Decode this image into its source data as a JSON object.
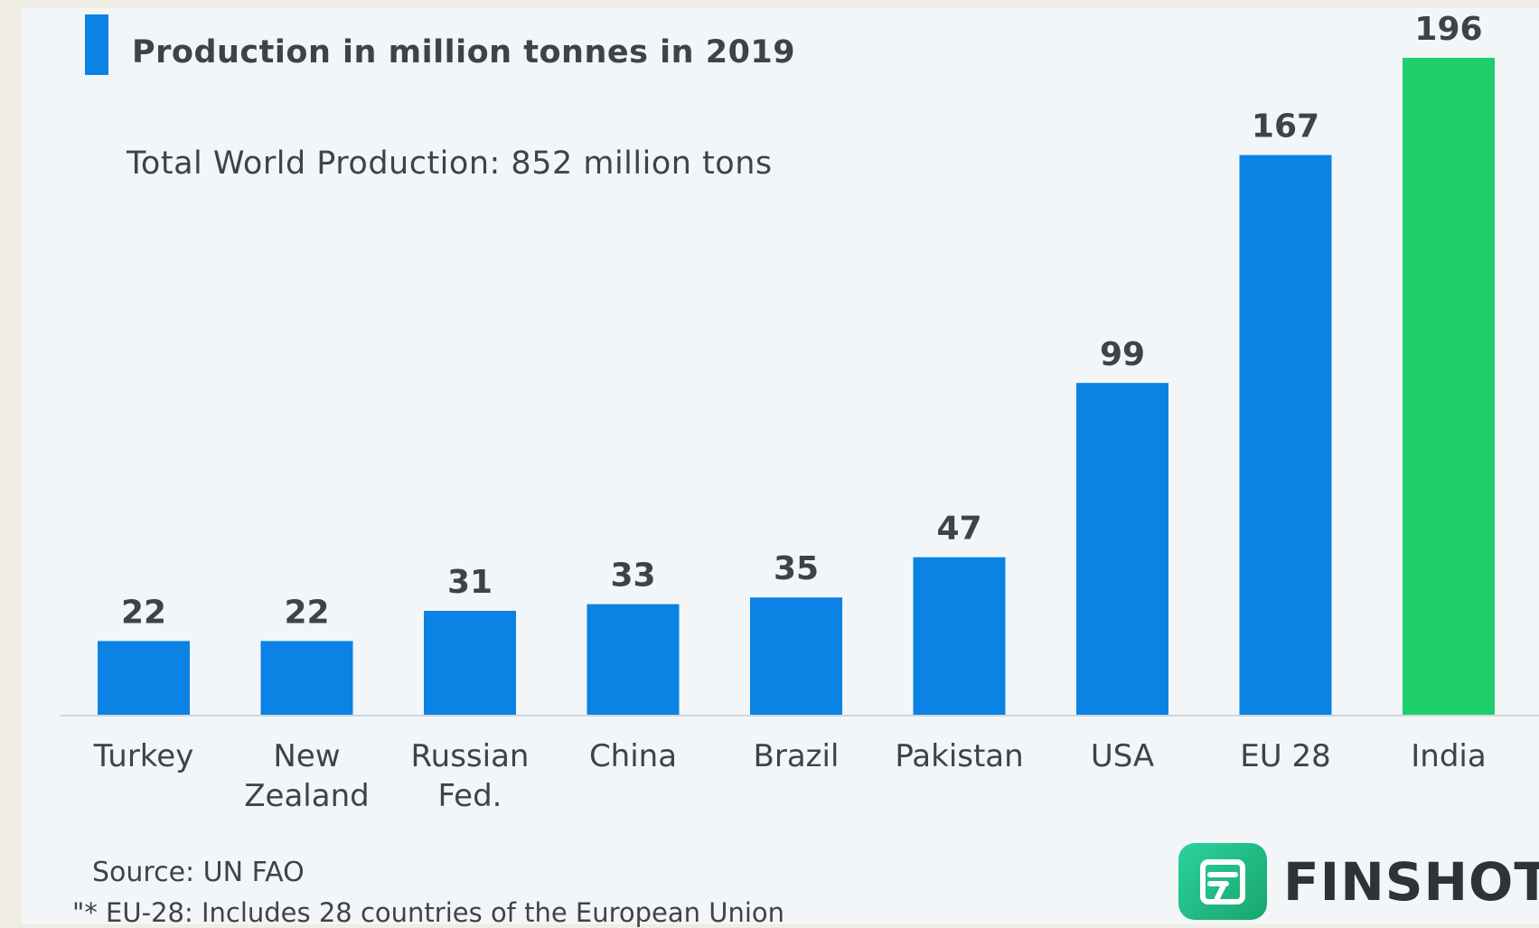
{
  "legend": {
    "label": "Production in million tonnes in 2019",
    "color": "#0b83e4"
  },
  "annotations": {
    "total": "Total World Production: 852 million tons",
    "source": "Source: UN FAO",
    "footnote": "\"* EU-28: Includes 28 countries of the European Union"
  },
  "brand": {
    "name": "FINSHOTS",
    "logo_icon": "finshots-logo-icon"
  },
  "colors": {
    "bar_default": "#0b83e4",
    "bar_highlight": "#1ecf6b",
    "text": "#3f4347",
    "axis": "#d3d7db"
  },
  "chart_data": {
    "type": "bar",
    "categories": [
      "Turkey",
      "New Zealand",
      "Russian Fed.",
      "China",
      "Brazil",
      "Pakistan",
      "USA",
      "EU 28",
      "India"
    ],
    "category_lines": [
      [
        "Turkey"
      ],
      [
        "New",
        "Zealand"
      ],
      [
        "Russian",
        "Fed."
      ],
      [
        "China"
      ],
      [
        "Brazil"
      ],
      [
        "Pakistan"
      ],
      [
        "USA"
      ],
      [
        "EU 28"
      ],
      [
        "India"
      ]
    ],
    "values": [
      22,
      22,
      31,
      33,
      35,
      47,
      99,
      167,
      196
    ],
    "data_labels": [
      "22",
      "22",
      "31",
      "33",
      "35",
      "47",
      "99",
      "167",
      "196"
    ],
    "highlight_index": 8,
    "ylim": [
      0,
      196
    ],
    "grid": false,
    "legend_position": "top-left"
  }
}
